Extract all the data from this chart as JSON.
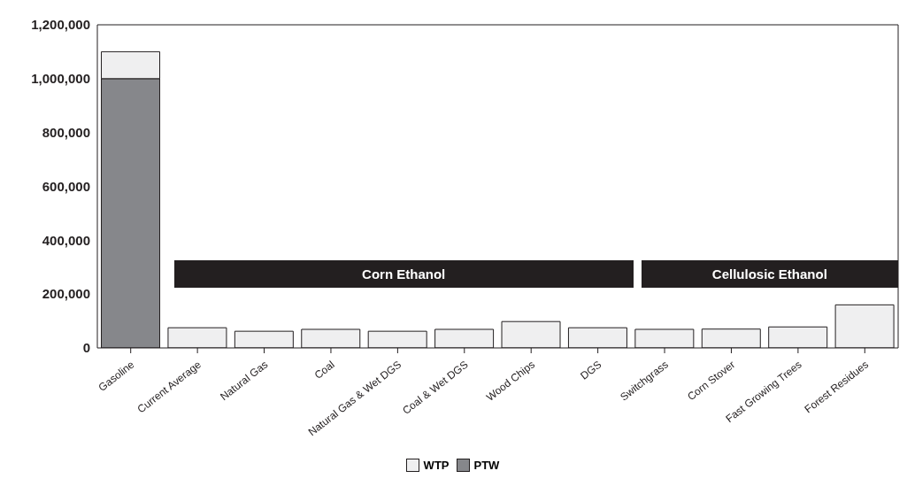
{
  "chart_data": {
    "type": "bar",
    "stacked": true,
    "categories": [
      "Gasoline",
      "Current Average",
      "Natural Gas",
      "Coal",
      "Natural Gas & Wet DGS",
      "Coal & Wet DGS",
      "Wood Chips",
      "DGS",
      "Switchgrass",
      "Corn Stover",
      "Fast Growing Trees",
      "Forest Residues"
    ],
    "series": [
      {
        "name": "PTW",
        "color": "#86878b",
        "values": [
          1000000,
          0,
          0,
          0,
          0,
          0,
          0,
          0,
          0,
          0,
          0,
          0
        ]
      },
      {
        "name": "WTP",
        "color": "#efeff0",
        "values": [
          100000,
          75000,
          62000,
          69000,
          62000,
          69000,
          98000,
          75000,
          69000,
          70000,
          78000,
          160000
        ]
      }
    ],
    "ylim": [
      0,
      1200000
    ],
    "yticks": [
      {
        "value": 0,
        "label": "0"
      },
      {
        "value": 200000,
        "label": "200,000"
      },
      {
        "value": 400000,
        "label": "400,000"
      },
      {
        "value": 600000,
        "label": "600,000"
      },
      {
        "value": 800000,
        "label": "800,000"
      },
      {
        "value": 1000000,
        "label": "1,000,000"
      },
      {
        "value": 1200000,
        "label": "1,200,000"
      }
    ],
    "annotations": [
      "Corn Ethanol",
      "Cellulosic Ethanol"
    ],
    "grid": false,
    "legend": "bottom"
  }
}
